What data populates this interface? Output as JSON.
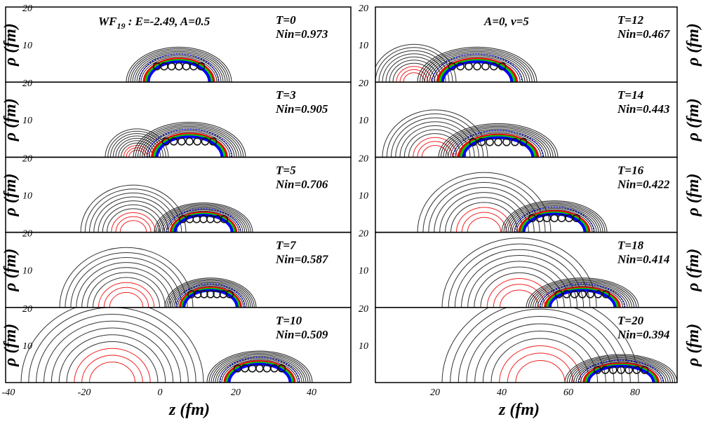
{
  "annotations": {
    "left_wf": "WF",
    "left_wf_sub": "19",
    "left_rest": " : E=-2.49, A=0.5",
    "right": "A=0, v=5"
  },
  "x_label": "z (fm)",
  "y_label": "ρ (fm)",
  "y_tick_labels": [
    "20",
    "10"
  ],
  "left_x_ticks": [
    "-40",
    "-20",
    "0",
    "20",
    "40"
  ],
  "right_x_ticks": [
    "20",
    "40",
    "60",
    "80"
  ],
  "panels": [
    {
      "t": "T=0",
      "nin": "Nin=0.973"
    },
    {
      "t": "T=3",
      "nin": "Nin=0.905"
    },
    {
      "t": "T=5",
      "nin": "Nin=0.706"
    },
    {
      "t": "T=7",
      "nin": "Nin=0.587"
    },
    {
      "t": "T=10",
      "nin": "Nin=0.509"
    },
    {
      "t": "T=12",
      "nin": "Nin=0.467"
    },
    {
      "t": "T=14",
      "nin": "Nin=0.443"
    },
    {
      "t": "T=16",
      "nin": "Nin=0.422"
    },
    {
      "t": "T=18",
      "nin": "Nin=0.414"
    },
    {
      "t": "T=20",
      "nin": "Nin=0.394"
    }
  ]
}
